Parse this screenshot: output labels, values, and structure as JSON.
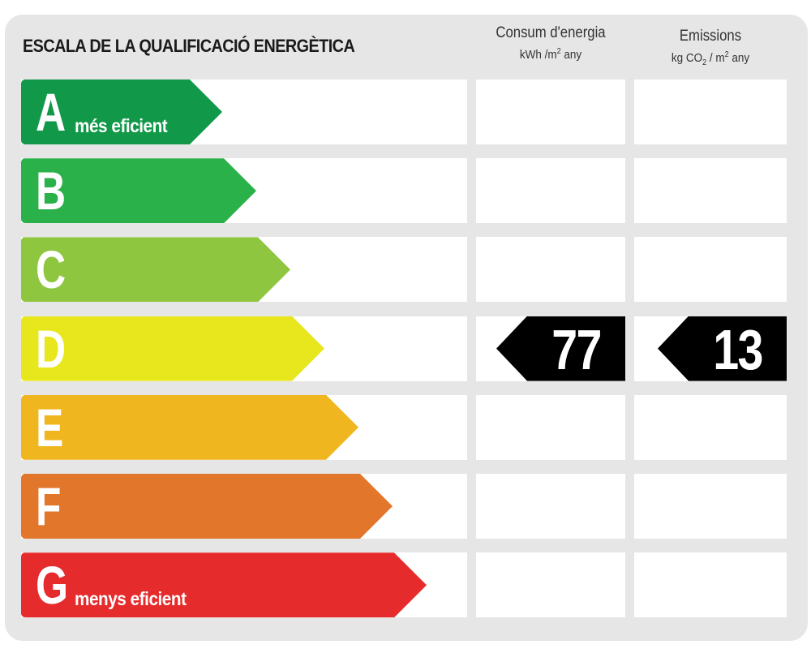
{
  "title": "ESCALA DE LA QUALIFICACIÓ ENERGÈTICA",
  "columns": {
    "consum": {
      "label": "Consum d'energia",
      "unit_prefix": "kWh /m",
      "unit_sup": "2",
      "unit_suffix": " any"
    },
    "emissions": {
      "label": "Emissions",
      "unit_prefix": "kg CO",
      "unit_sub": "2",
      "unit_mid": " / m",
      "unit_sup": "2",
      "unit_suffix": " any"
    }
  },
  "classes": [
    {
      "letter": "A",
      "caption": "més eficient",
      "color": "#119849"
    },
    {
      "letter": "B",
      "caption": "",
      "color": "#2ab14a"
    },
    {
      "letter": "C",
      "caption": "",
      "color": "#8fc640"
    },
    {
      "letter": "D",
      "caption": "",
      "color": "#e8e71d"
    },
    {
      "letter": "E",
      "caption": "",
      "color": "#f0b61f"
    },
    {
      "letter": "F",
      "caption": "",
      "color": "#e2762a"
    },
    {
      "letter": "G",
      "caption": "menys eficient",
      "color": "#e52b2c"
    }
  ],
  "rating": {
    "class": "D",
    "consum_value": "77",
    "emissions_value": "13"
  }
}
